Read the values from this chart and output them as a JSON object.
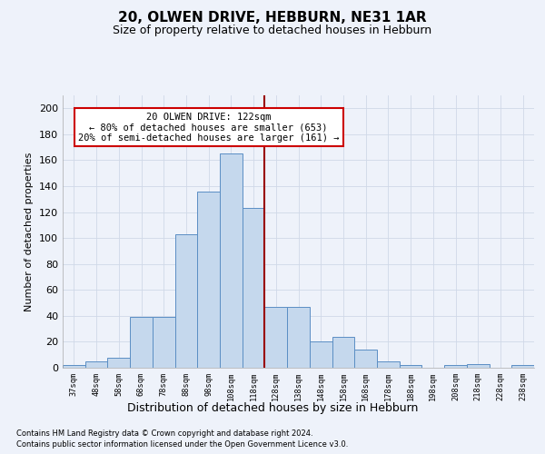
{
  "title_line1": "20, OLWEN DRIVE, HEBBURN, NE31 1AR",
  "title_line2": "Size of property relative to detached houses in Hebburn",
  "xlabel": "Distribution of detached houses by size in Hebburn",
  "ylabel": "Number of detached properties",
  "footnote1": "Contains HM Land Registry data © Crown copyright and database right 2024.",
  "footnote2": "Contains public sector information licensed under the Open Government Licence v3.0.",
  "annotation_line1": "20 OLWEN DRIVE: 122sqm",
  "annotation_line2": "← 80% of detached houses are smaller (653)",
  "annotation_line3": "20% of semi-detached houses are larger (161) →",
  "bar_labels": [
    "37sqm",
    "48sqm",
    "58sqm",
    "68sqm",
    "78sqm",
    "88sqm",
    "98sqm",
    "108sqm",
    "118sqm",
    "128sqm",
    "138sqm",
    "148sqm",
    "158sqm",
    "168sqm",
    "178sqm",
    "188sqm",
    "198sqm",
    "208sqm",
    "218sqm",
    "228sqm",
    "238sqm"
  ],
  "bar_values": [
    2,
    5,
    8,
    39,
    39,
    103,
    136,
    165,
    123,
    47,
    47,
    20,
    24,
    14,
    5,
    2,
    0,
    2,
    3,
    0,
    2
  ],
  "bar_color": "#c5d8ed",
  "bar_edge_color": "#5b8ec4",
  "reference_line_color": "#990000",
  "ylim": [
    0,
    210
  ],
  "yticks": [
    0,
    20,
    40,
    60,
    80,
    100,
    120,
    140,
    160,
    180,
    200
  ],
  "grid_color": "#d0d8e8",
  "background_color": "#eef2fa",
  "title_fontsize": 11,
  "subtitle_fontsize": 9,
  "annotation_border_color": "#cc0000"
}
